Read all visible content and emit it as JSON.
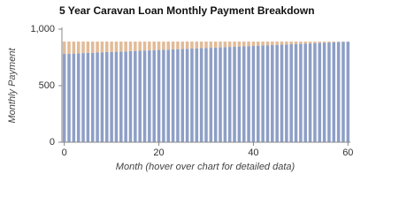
{
  "chart_data": {
    "type": "bar",
    "stacked": true,
    "title": "5 Year Caravan Loan Monthly Payment Breakdown",
    "x_label": "Month (hover over chart for detailed data)",
    "y_label": "Monthly Payment",
    "x": [
      0,
      1,
      2,
      3,
      4,
      5,
      6,
      7,
      8,
      9,
      10,
      11,
      12,
      13,
      14,
      15,
      16,
      17,
      18,
      19,
      20,
      21,
      22,
      23,
      24,
      25,
      26,
      27,
      28,
      29,
      30,
      31,
      32,
      33,
      34,
      35,
      36,
      37,
      38,
      39,
      40,
      41,
      42,
      43,
      44,
      45,
      46,
      47,
      48,
      49,
      50,
      51,
      52,
      53,
      54,
      55,
      56,
      57,
      58,
      59,
      60
    ],
    "series": [
      {
        "color": "#8e9fc6",
        "values": [
          781,
          783,
          784,
          786,
          788,
          790,
          791,
          793,
          795,
          797,
          798,
          800,
          802,
          803,
          805,
          807,
          809,
          811,
          812,
          814,
          816,
          818,
          819,
          821,
          823,
          825,
          826,
          828,
          830,
          832,
          834,
          835,
          837,
          839,
          841,
          843,
          845,
          846,
          848,
          850,
          852,
          854,
          856,
          858,
          859,
          861,
          863,
          865,
          867,
          869,
          870,
          872,
          874,
          876,
          878,
          880,
          882,
          884,
          886,
          888,
          889
        ]
      },
      {
        "color": "#e2bb98",
        "values": [
          109,
          107,
          106,
          104,
          102,
          100,
          99,
          97,
          95,
          93,
          92,
          90,
          88,
          87,
          85,
          83,
          81,
          79,
          78,
          76,
          74,
          72,
          71,
          69,
          67,
          65,
          64,
          62,
          60,
          58,
          56,
          55,
          53,
          51,
          49,
          47,
          45,
          44,
          42,
          40,
          38,
          36,
          34,
          32,
          31,
          29,
          27,
          25,
          23,
          21,
          20,
          18,
          16,
          14,
          12,
          10,
          8,
          6,
          4,
          2,
          1
        ]
      }
    ],
    "xlim": [
      -0.5,
      60.5
    ],
    "xticks": [
      0,
      20,
      40,
      60
    ],
    "ylim": [
      0,
      1000
    ],
    "yticks": [
      0,
      500,
      {
        "value": 1000,
        "label": "1,000"
      }
    ]
  }
}
